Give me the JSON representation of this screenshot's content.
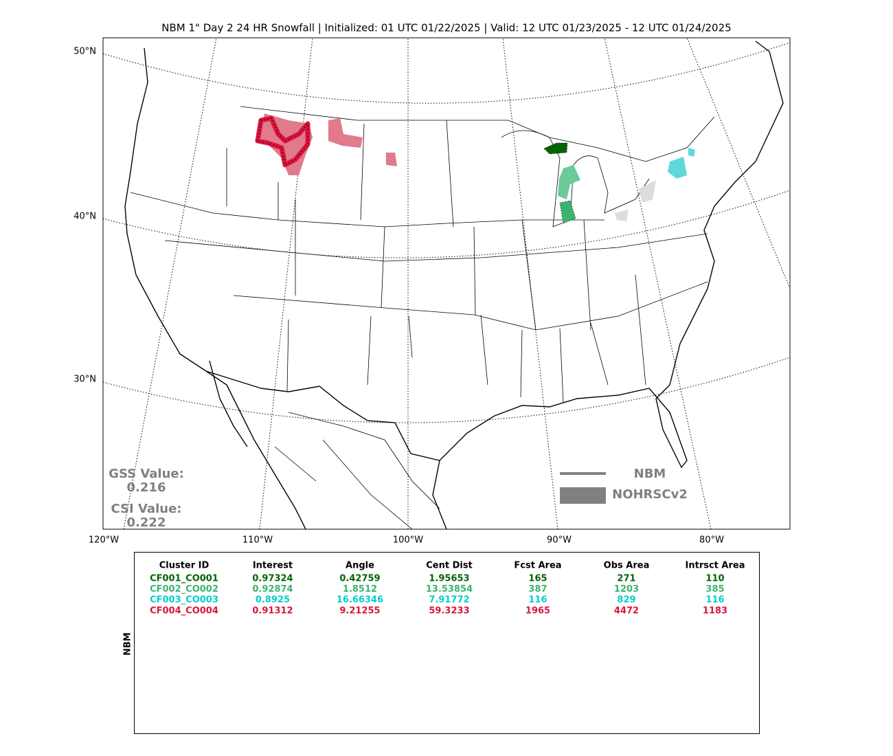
{
  "header": {
    "title": "NBM 1\" Day 2 24 HR Snowfall | Initialized: 01 UTC 01/22/2025 | Valid: 12 UTC 01/23/2025 - 12 UTC 01/24/2025"
  },
  "map": {
    "lat_labels": [
      "50°N",
      "40°N",
      "30°N"
    ],
    "lon_labels": [
      "120°W",
      "110°W",
      "100°W",
      "90°W",
      "80°W"
    ],
    "scores": {
      "gss_label": "GSS Value:",
      "gss_value": "0.216",
      "csi_label": "CSI Value:",
      "csi_value": "0.222"
    },
    "legend": {
      "forecast": "NBM",
      "observed": "NOHRSCv2"
    }
  },
  "table": {
    "side_label": "NBM",
    "columns": [
      "Cluster ID",
      "Interest",
      "Angle",
      "Cent Dist",
      "Fcst Area",
      "Obs Area",
      "Intrsct Area"
    ],
    "rows": [
      {
        "color": "#006400",
        "cells": [
          "CF001_CO001",
          "0.97324",
          "0.42759",
          "1.95653",
          "165",
          "271",
          "110"
        ]
      },
      {
        "color": "#3cb371",
        "cells": [
          "CF002_CO002",
          "0.92874",
          "1.8512",
          "13.53854",
          "387",
          "1203",
          "385"
        ]
      },
      {
        "color": "#00ced1",
        "cells": [
          "CF003_CO003",
          "0.8925",
          "16.66346",
          "7.91772",
          "116",
          "829",
          "116"
        ]
      },
      {
        "color": "#dc143c",
        "cells": [
          "CF004_CO004",
          "0.91312",
          "9.21255",
          "59.3233",
          "1965",
          "4472",
          "1183"
        ]
      }
    ]
  }
}
